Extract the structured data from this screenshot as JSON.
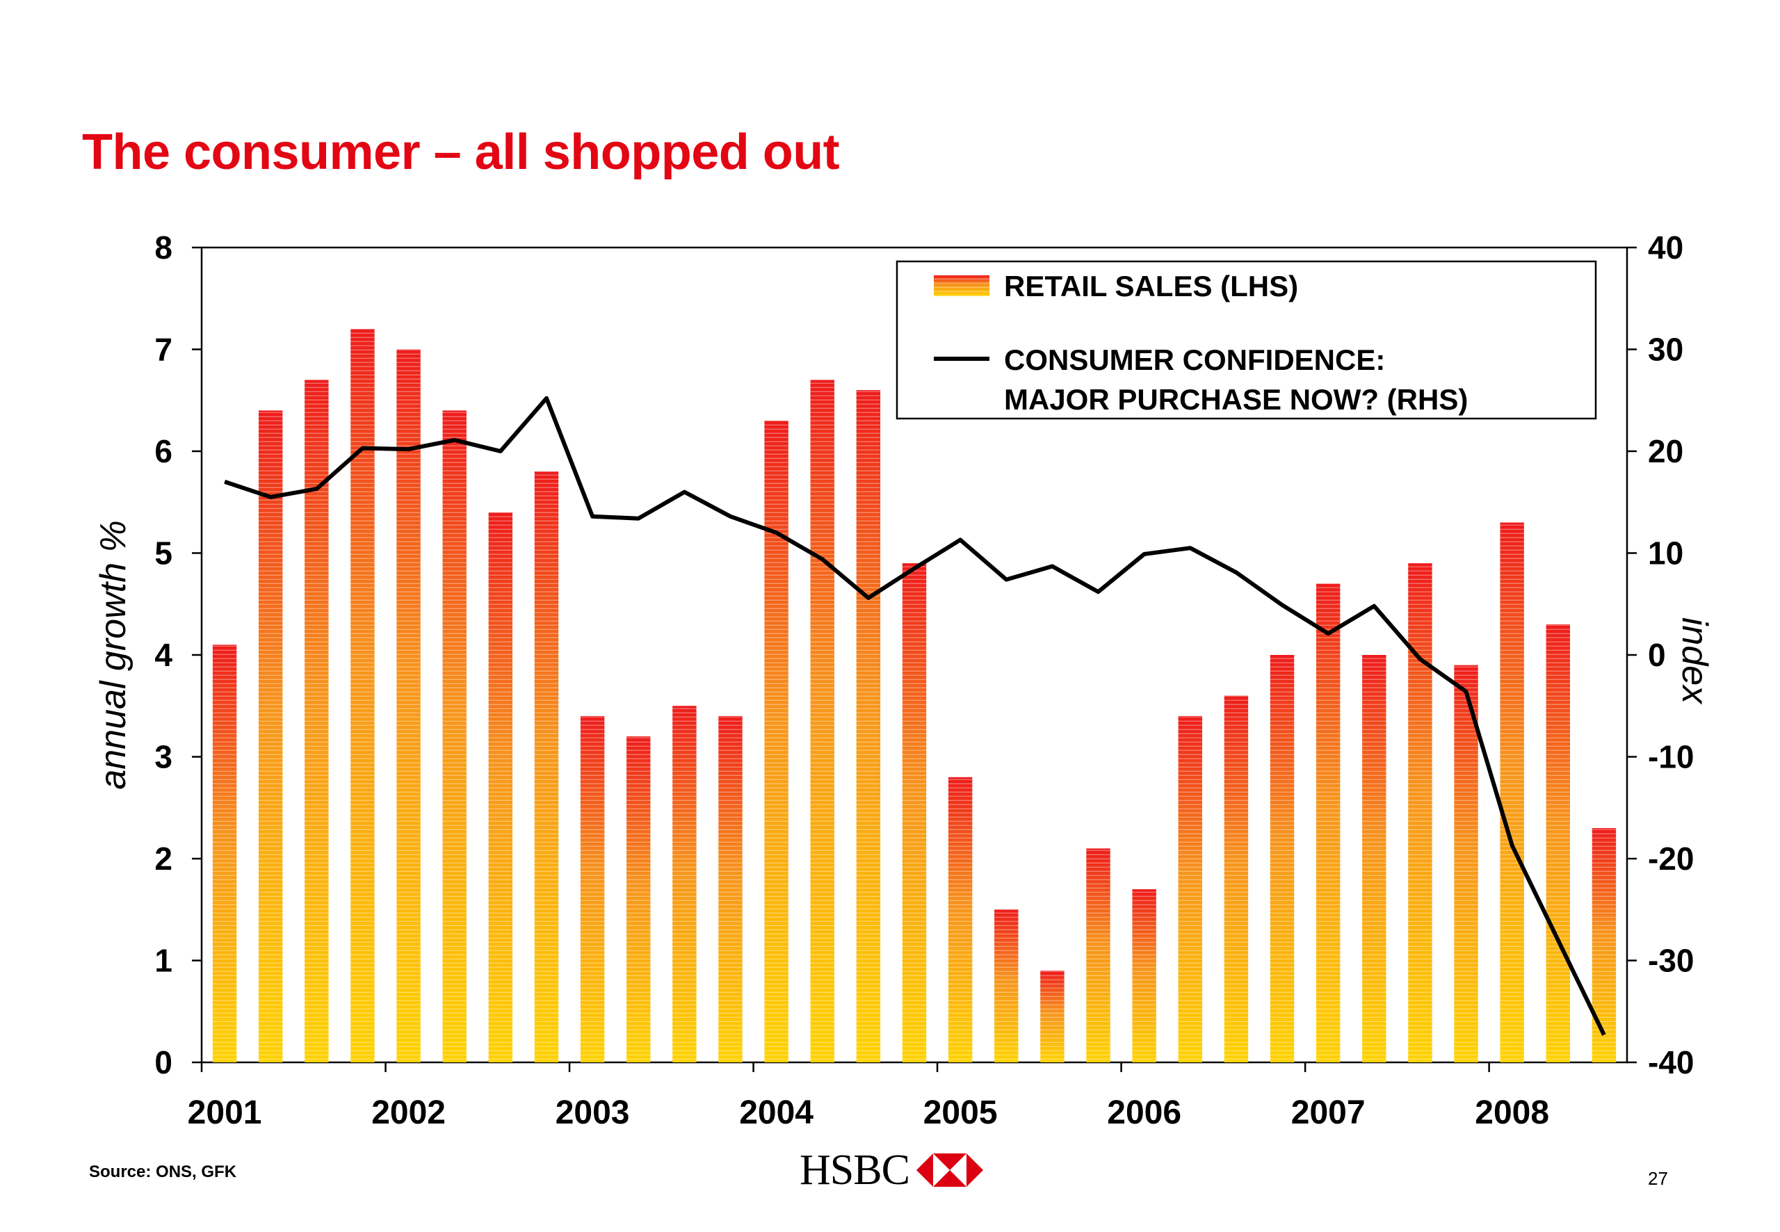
{
  "slide": {
    "title": "The consumer – all shopped out",
    "source": "Source: ONS, GFK",
    "page_number": "27",
    "logo_text": "HSBC",
    "logo_icon": "hsbc-hexagon-icon"
  },
  "colors": {
    "title": "#e30613",
    "bar_top": "#ee1c1c",
    "bar_mid": "#f7941d",
    "bar_bottom": "#ffd200",
    "line": "#000000",
    "logo_red": "#db0011"
  },
  "chart_data": {
    "type": "bar",
    "title": "",
    "ylabel": "annual growth %",
    "ylabel_right": "index",
    "ylim": [
      0,
      8
    ],
    "yticks": [
      "0",
      "1",
      "2",
      "3",
      "4",
      "5",
      "6",
      "7",
      "8"
    ],
    "ylim_right": [
      -40,
      40
    ],
    "yticks_right": [
      "-40",
      "-30",
      "-20",
      "-10",
      "0",
      "10",
      "20",
      "30",
      "40"
    ],
    "x_tick_labels": [
      "2001",
      "2002",
      "2003",
      "2004",
      "2005",
      "2006",
      "2007",
      "2008"
    ],
    "legend_position": "top-right",
    "grid": false,
    "categories": [
      "2001 Q1",
      "2001 Q2",
      "2001 Q3",
      "2001 Q4",
      "2002 Q1",
      "2002 Q2",
      "2002 Q3",
      "2002 Q4",
      "2003 Q1",
      "2003 Q2",
      "2003 Q3",
      "2003 Q4",
      "2004 Q1",
      "2004 Q2",
      "2004 Q3",
      "2004 Q4",
      "2005 Q1",
      "2005 Q2",
      "2005 Q3",
      "2005 Q4",
      "2006 Q1",
      "2006 Q2",
      "2006 Q3",
      "2006 Q4",
      "2007 Q1",
      "2007 Q2",
      "2007 Q3",
      "2007 Q4",
      "2008 Q1",
      "2008 Q2",
      "2008 Q3"
    ],
    "series": [
      {
        "name": "RETAIL SALES (LHS)",
        "type": "bar",
        "axis": "left",
        "values": [
          4.1,
          6.4,
          6.7,
          7.2,
          7.0,
          6.4,
          5.4,
          5.8,
          3.4,
          3.2,
          3.5,
          3.4,
          6.3,
          6.7,
          6.6,
          4.9,
          2.8,
          1.5,
          0.9,
          2.1,
          1.7,
          3.4,
          3.6,
          4.0,
          4.7,
          4.0,
          4.9,
          3.9,
          5.3,
          4.3,
          2.3
        ]
      },
      {
        "name": "CONSUMER CONFIDENCE: MAJOR PURCHASE NOW? (RHS)",
        "name_lines": [
          "CONSUMER CONFIDENCE:",
          "MAJOR PURCHASE NOW? (RHS)"
        ],
        "type": "line",
        "axis": "right",
        "values": [
          17,
          15.5,
          16.3,
          20.3,
          20.2,
          21.1,
          20,
          25.2,
          13.6,
          13.4,
          16,
          13.6,
          12,
          9.4,
          5.6,
          8.5,
          11.3,
          7.4,
          8.7,
          6.2,
          9.9,
          10.5,
          8.1,
          4.9,
          2.1,
          4.8,
          -0.4,
          -3.6,
          -18.7,
          -28,
          -37.3
        ]
      }
    ]
  }
}
